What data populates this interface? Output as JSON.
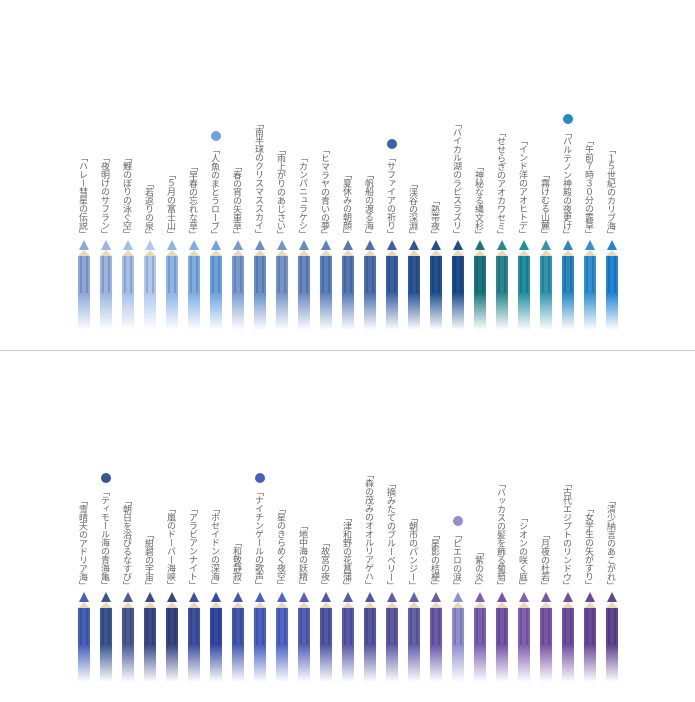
{
  "top": {
    "items": [
      {
        "label": "「ハレー彗星の伝説」",
        "color": "#8ba8d8"
      },
      {
        "label": "「夜明けのサフラン」",
        "color": "#9bb5e0"
      },
      {
        "label": "「鯉のぼりの泳ぐ空」",
        "color": "#a5c0e8"
      },
      {
        "label": "「若返りの泉」",
        "color": "#b0c8ed"
      },
      {
        "label": "「５月の富士山」",
        "color": "#8eb5e8"
      },
      {
        "label": "「早春の忘れな草」",
        "color": "#7dade5"
      },
      {
        "label": "「人魚のまとうローブ」",
        "color": "#6ba3e0",
        "dot": "#6ba3e0"
      },
      {
        "label": "「春の宵の矢車草」",
        "color": "#7a9bd0"
      },
      {
        "label": "「南半球のクリスマススカイ」",
        "color": "#6890c8"
      },
      {
        "label": "「雨上がりのあじさい」",
        "color": "#7595c5"
      },
      {
        "label": "「カンパニュラケシ」",
        "color": "#6888c0"
      },
      {
        "label": "「ヒマラヤの青いの夢」",
        "color": "#5a80bd"
      },
      {
        "label": "「夏休みの朝顔」",
        "color": "#5578b5"
      },
      {
        "label": "「帆船の渡る海」",
        "color": "#4a70b0"
      },
      {
        "label": "「サファイアの祈り」",
        "color": "#3a60a5",
        "dot": "#3a60a5"
      },
      {
        "label": "「渓谷の深淵」",
        "color": "#2d5598"
      },
      {
        "label": "「熱帯夜」",
        "color": "#205090"
      },
      {
        "label": "「バイカル湖のラピスラズリ」",
        "color": "#1a4d8a"
      },
      {
        "label": "「神秘なる縄文杉」",
        "color": "#1a7580"
      },
      {
        "label": "「せせらぎのアオカワセミ」",
        "color": "#2a8590"
      },
      {
        "label": "「インド洋のアオヒトデ」",
        "color": "#2090a0"
      },
      {
        "label": "「霧けむる山麓」",
        "color": "#3095b0"
      },
      {
        "label": "「パルテノン神殿の夜更け」",
        "color": "#2888c0",
        "dot": "#2888c0"
      },
      {
        "label": "「午前７時３０分の露草」",
        "color": "#3090d0"
      },
      {
        "label": "「１５世紀のカリブ海」",
        "color": "#2085d5"
      }
    ]
  },
  "bottom": {
    "items": [
      {
        "label": "「雪晴天のアドリア海」",
        "color": "#4560b8"
      },
      {
        "label": "「ティモール海の青海亀」",
        "color": "#3a5590",
        "dot": "#3a5590"
      },
      {
        "label": "「朝日を浴びるなすび」",
        "color": "#4a5a95"
      },
      {
        "label": "「紺碧の宇宙」",
        "color": "#3a4a88"
      },
      {
        "label": "「嵐のドーバー海峡」",
        "color": "#384580"
      },
      {
        "label": "「アラビアンナイト」",
        "color": "#4050a0"
      },
      {
        "label": "「ポセイドンの深海」",
        "color": "#3548a5"
      },
      {
        "label": "「和敬静寂」",
        "color": "#4558b0"
      },
      {
        "label": "「ナイチンゲールの歌声」",
        "color": "#4a60c0",
        "dot": "#4a60c0"
      },
      {
        "label": "「星のきらめく夜空」",
        "color": "#5065c5"
      },
      {
        "label": "「地中海の妖精」",
        "color": "#5560b8"
      },
      {
        "label": "「故宮の夜」",
        "color": "#5058a8"
      },
      {
        "label": "「津和野の花菖蒲」",
        "color": "#5a5aaa"
      },
      {
        "label": "「森の茂みのオオルリアゲハ」",
        "color": "#5555a0"
      },
      {
        "label": "「摘みたてのブルーベリー」",
        "color": "#605aa5"
      },
      {
        "label": "「朝市のパンジー」",
        "color": "#6560aa"
      },
      {
        "label": "「星影の桔梗」",
        "color": "#6a5aaa"
      },
      {
        "label": "「ピエロの涙」",
        "color": "#9090d0",
        "dot": "#9090d0"
      },
      {
        "label": "「紫の炎」",
        "color": "#7a60b5"
      },
      {
        "label": "「バッカスの髪を飾る葡萄」",
        "color": "#7555a8"
      },
      {
        "label": "「シオンの咲く庭」",
        "color": "#8060b0"
      },
      {
        "label": "「月夜の杜若」",
        "color": "#7a55a5"
      },
      {
        "label": "「古代エジプトのリンドウ」",
        "color": "#7050a0"
      },
      {
        "label": "「女学生の矢がすり」",
        "color": "#6a4a98"
      },
      {
        "label": "「清少納言のあこがれ」",
        "color": "#604590"
      }
    ]
  }
}
